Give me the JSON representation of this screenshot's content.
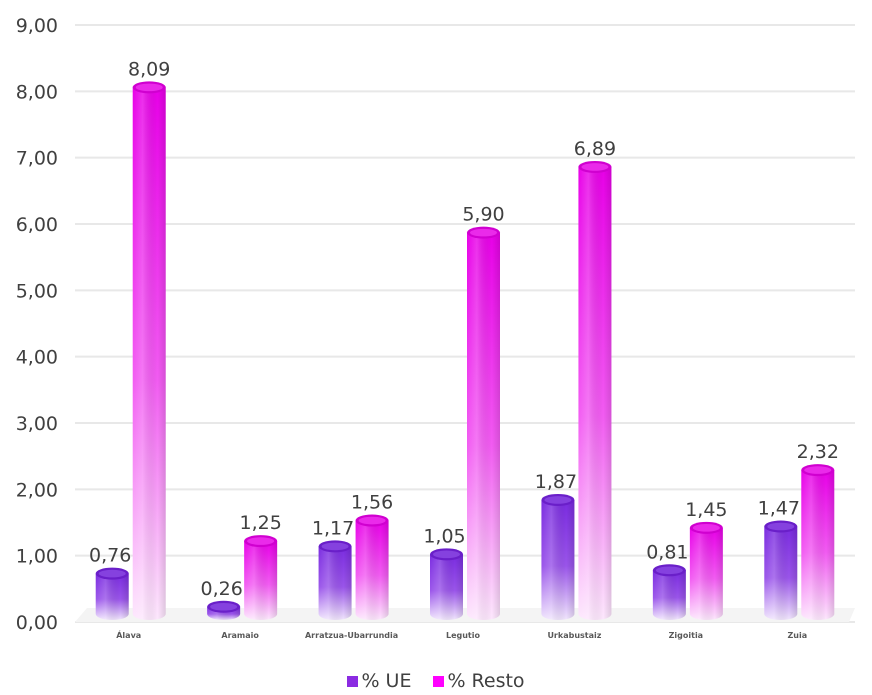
{
  "chart_data": {
    "type": "bar",
    "categories": [
      "Álava",
      "Aramaio",
      "Arratzua-Ubarrundia",
      "Legutio",
      "Urkabustaiz",
      "Zigoitia",
      "Zuia"
    ],
    "series": [
      {
        "name": "% UE",
        "values": [
          0.76,
          0.26,
          1.17,
          1.05,
          1.87,
          0.81,
          1.47
        ],
        "labels": [
          "0,76",
          "0,26",
          "1,17",
          "1,05",
          "1,87",
          "0,81",
          "1,47"
        ],
        "color": "#8b2be2"
      },
      {
        "name": "% Resto",
        "values": [
          8.09,
          1.25,
          1.56,
          5.9,
          6.89,
          1.45,
          2.32
        ],
        "labels": [
          "8,09",
          "1,25",
          "1,56",
          "5,90",
          "6,89",
          "1,45",
          "2,32"
        ],
        "color": "#ff00ff"
      }
    ],
    "ylim": [
      0,
      9
    ],
    "yticks": [
      "0,00",
      "1,00",
      "2,00",
      "3,00",
      "4,00",
      "5,00",
      "6,00",
      "7,00",
      "8,00",
      "9,00"
    ],
    "grid": true,
    "legend_position": "bottom"
  }
}
